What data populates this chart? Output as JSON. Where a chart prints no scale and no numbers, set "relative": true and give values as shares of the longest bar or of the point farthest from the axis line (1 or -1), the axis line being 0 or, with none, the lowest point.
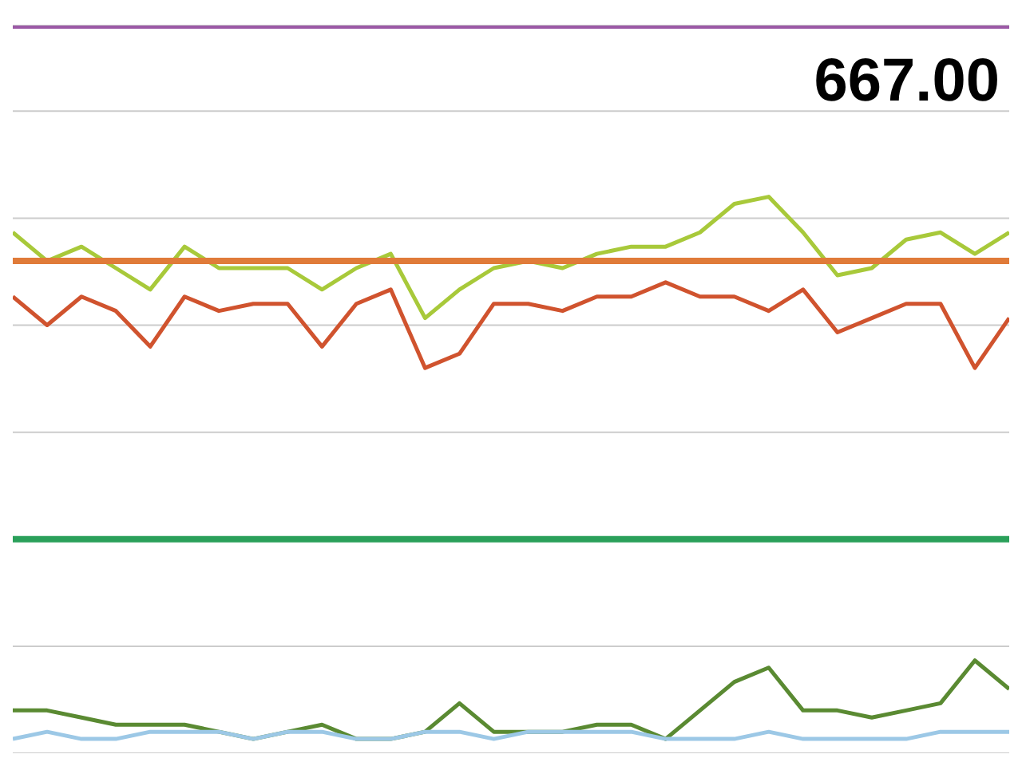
{
  "chart_data": {
    "type": "line",
    "relative": true,
    "grid": "y",
    "marker": "none",
    "categories": [
      null,
      null,
      null,
      null,
      null,
      null,
      null,
      null,
      null,
      null,
      null,
      null,
      null,
      null,
      null,
      null,
      null,
      null,
      null,
      null,
      null,
      null,
      null,
      null,
      null,
      null,
      null,
      null,
      null,
      null
    ],
    "annotations": [
      "667.00"
    ],
    "series": [
      {
        "color": "#9b59a6",
        "values": [
          1,
          1,
          1,
          1,
          1,
          1,
          1,
          1,
          1,
          1,
          1,
          1,
          1,
          1,
          1,
          1,
          1,
          1,
          1,
          1,
          1,
          1,
          1,
          1,
          1,
          1,
          1,
          1,
          1,
          1
        ]
      },
      {
        "color": "#a8c93a",
        "values": [
          0.71,
          0.67,
          0.69,
          0.66,
          0.63,
          0.69,
          0.66,
          0.66,
          0.66,
          0.63,
          0.66,
          0.68,
          0.59,
          0.63,
          0.66,
          0.67,
          0.66,
          0.68,
          0.69,
          0.69,
          0.71,
          0.75,
          0.76,
          0.71,
          0.65,
          0.66,
          0.7,
          0.71,
          0.68,
          0.71
        ]
      },
      {
        "color": "#e07b39",
        "values": [
          0.67,
          0.67,
          0.67,
          0.67,
          0.67,
          0.67,
          0.67,
          0.67,
          0.67,
          0.67,
          0.67,
          0.67,
          0.67,
          0.67,
          0.67,
          0.67,
          0.67,
          0.67,
          0.67,
          0.67,
          0.67,
          0.67,
          0.67,
          0.67,
          0.67,
          0.67,
          0.67,
          0.67,
          0.67,
          0.67
        ]
      },
      {
        "color": "#d0532e",
        "values": [
          0.62,
          0.58,
          0.62,
          0.6,
          0.55,
          0.62,
          0.6,
          0.61,
          0.61,
          0.55,
          0.61,
          0.63,
          0.52,
          0.54,
          0.61,
          0.61,
          0.6,
          0.62,
          0.62,
          0.64,
          0.62,
          0.62,
          0.6,
          0.63,
          0.57,
          0.59,
          0.61,
          0.61,
          0.52,
          0.59
        ]
      },
      {
        "color": "#2aa05a",
        "values": [
          0.28,
          0.28,
          0.28,
          0.28,
          0.28,
          0.28,
          0.28,
          0.28,
          0.28,
          0.28,
          0.28,
          0.28,
          0.28,
          0.28,
          0.28,
          0.28,
          0.28,
          0.28,
          0.28,
          0.28,
          0.28,
          0.28,
          0.28,
          0.28,
          0.28,
          0.28,
          0.28,
          0.28,
          0.28,
          0.28
        ]
      },
      {
        "color": "#5a8a32",
        "values": [
          0.04,
          0.04,
          0.03,
          0.02,
          0.02,
          0.02,
          0.01,
          0,
          0.01,
          0.02,
          0,
          0,
          0.01,
          0.05,
          0.01,
          0.01,
          0.01,
          0.02,
          0.02,
          0,
          0.04,
          0.08,
          0.1,
          0.04,
          0.04,
          0.03,
          0.04,
          0.05,
          0.11,
          0.07
        ]
      },
      {
        "color": "#9cc8e6",
        "values": [
          0,
          0.01,
          0,
          0,
          0.01,
          0.01,
          0.01,
          0,
          0.01,
          0.01,
          0,
          0,
          0.01,
          0.01,
          0,
          0.01,
          0.01,
          0.01,
          0.01,
          0,
          0,
          0,
          0.01,
          0,
          0,
          0,
          0,
          0.01,
          0.01,
          0.01
        ]
      }
    ]
  }
}
